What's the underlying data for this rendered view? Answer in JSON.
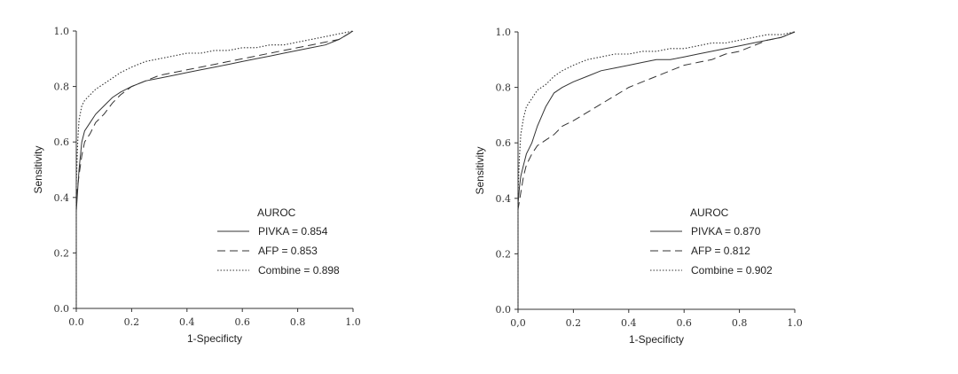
{
  "chart_data": [
    {
      "type": "line",
      "xlabel": "1-Specificty",
      "ylabel": "Sensitivity",
      "xlim": [
        0,
        1
      ],
      "ylim": [
        0,
        1
      ],
      "xticks": [
        "0.0",
        "0.2",
        "0.4",
        "0.6",
        "0.8",
        "1.0"
      ],
      "yticks": [
        "0.0",
        "0.2",
        "0.4",
        "0.6",
        "0.8",
        "1.0"
      ],
      "grid": false,
      "legend_title": "AUROC",
      "legend_position": "bottom-right",
      "series": [
        {
          "name": "PIVKA = 0.854",
          "style": "solid",
          "x": [
            0,
            0,
            0.01,
            0.02,
            0.03,
            0.05,
            0.07,
            0.1,
            0.13,
            0.16,
            0.2,
            0.25,
            0.3,
            0.35,
            0.4,
            0.45,
            0.5,
            0.55,
            0.6,
            0.65,
            0.7,
            0.75,
            0.8,
            0.85,
            0.9,
            0.95,
            1.0
          ],
          "y": [
            0,
            0.35,
            0.5,
            0.6,
            0.64,
            0.67,
            0.7,
            0.73,
            0.76,
            0.78,
            0.8,
            0.82,
            0.83,
            0.84,
            0.85,
            0.86,
            0.87,
            0.88,
            0.89,
            0.9,
            0.91,
            0.92,
            0.93,
            0.94,
            0.95,
            0.97,
            1.0
          ]
        },
        {
          "name": "AFP = 0.853",
          "style": "dashed",
          "x": [
            0,
            0,
            0.01,
            0.02,
            0.03,
            0.05,
            0.07,
            0.1,
            0.13,
            0.16,
            0.2,
            0.25,
            0.3,
            0.35,
            0.4,
            0.45,
            0.5,
            0.55,
            0.6,
            0.65,
            0.7,
            0.75,
            0.8,
            0.85,
            0.9,
            0.95,
            1.0
          ],
          "y": [
            0,
            0.4,
            0.48,
            0.55,
            0.6,
            0.63,
            0.67,
            0.7,
            0.74,
            0.77,
            0.8,
            0.82,
            0.84,
            0.85,
            0.86,
            0.87,
            0.88,
            0.89,
            0.9,
            0.91,
            0.92,
            0.93,
            0.94,
            0.95,
            0.96,
            0.97,
            1.0
          ]
        },
        {
          "name": "Combine = 0.898",
          "style": "dotted",
          "x": [
            0,
            0,
            0.005,
            0.01,
            0.02,
            0.03,
            0.05,
            0.07,
            0.1,
            0.13,
            0.16,
            0.2,
            0.25,
            0.3,
            0.35,
            0.4,
            0.45,
            0.5,
            0.55,
            0.6,
            0.65,
            0.7,
            0.75,
            0.8,
            0.85,
            0.9,
            0.95,
            1.0
          ],
          "y": [
            0,
            0.45,
            0.6,
            0.68,
            0.73,
            0.75,
            0.77,
            0.79,
            0.81,
            0.83,
            0.85,
            0.87,
            0.89,
            0.9,
            0.91,
            0.92,
            0.92,
            0.93,
            0.93,
            0.94,
            0.94,
            0.95,
            0.95,
            0.96,
            0.97,
            0.98,
            0.99,
            1.0
          ]
        }
      ]
    },
    {
      "type": "line",
      "xlabel": "1-Specificty",
      "ylabel": "Sensitivity",
      "xlim": [
        0,
        1
      ],
      "ylim": [
        0,
        1
      ],
      "xticks": [
        "0,0",
        "0.2",
        "0.4",
        "0.6",
        "0.8",
        "1.0"
      ],
      "yticks": [
        "0.0",
        "0.2",
        "0.4",
        "0.6",
        "0.8",
        "1.0"
      ],
      "grid": false,
      "legend_title": "AUROC",
      "legend_position": "bottom-right",
      "series": [
        {
          "name": "PIVKA = 0.870",
          "style": "solid",
          "x": [
            0,
            0,
            0.005,
            0.01,
            0.02,
            0.03,
            0.05,
            0.07,
            0.1,
            0.13,
            0.16,
            0.2,
            0.25,
            0.3,
            0.35,
            0.4,
            0.45,
            0.5,
            0.55,
            0.6,
            0.65,
            0.7,
            0.75,
            0.8,
            0.85,
            0.9,
            0.95,
            1.0
          ],
          "y": [
            0,
            0.38,
            0.44,
            0.48,
            0.52,
            0.56,
            0.6,
            0.66,
            0.73,
            0.78,
            0.8,
            0.82,
            0.84,
            0.86,
            0.87,
            0.88,
            0.89,
            0.9,
            0.9,
            0.91,
            0.92,
            0.93,
            0.94,
            0.95,
            0.96,
            0.97,
            0.98,
            1.0
          ]
        },
        {
          "name": "AFP = 0.812",
          "style": "dashed",
          "x": [
            0,
            0,
            0.01,
            0.02,
            0.03,
            0.05,
            0.07,
            0.1,
            0.13,
            0.16,
            0.2,
            0.25,
            0.3,
            0.35,
            0.4,
            0.45,
            0.5,
            0.55,
            0.6,
            0.65,
            0.7,
            0.75,
            0.8,
            0.85,
            0.9,
            0.95,
            1.0
          ],
          "y": [
            0,
            0.36,
            0.42,
            0.48,
            0.52,
            0.56,
            0.59,
            0.61,
            0.63,
            0.66,
            0.68,
            0.71,
            0.74,
            0.77,
            0.8,
            0.82,
            0.84,
            0.86,
            0.88,
            0.89,
            0.9,
            0.92,
            0.93,
            0.95,
            0.97,
            0.98,
            1.0
          ]
        },
        {
          "name": "Combine = 0.902",
          "style": "dotted",
          "x": [
            0,
            0,
            0.005,
            0.01,
            0.02,
            0.03,
            0.05,
            0.07,
            0.1,
            0.13,
            0.16,
            0.2,
            0.25,
            0.3,
            0.35,
            0.4,
            0.45,
            0.5,
            0.55,
            0.6,
            0.65,
            0.7,
            0.75,
            0.8,
            0.85,
            0.9,
            0.95,
            1.0
          ],
          "y": [
            0,
            0.42,
            0.55,
            0.63,
            0.69,
            0.73,
            0.76,
            0.79,
            0.81,
            0.84,
            0.86,
            0.88,
            0.9,
            0.91,
            0.92,
            0.92,
            0.93,
            0.93,
            0.94,
            0.94,
            0.95,
            0.96,
            0.96,
            0.97,
            0.98,
            0.99,
            0.99,
            1.0
          ]
        }
      ]
    }
  ]
}
